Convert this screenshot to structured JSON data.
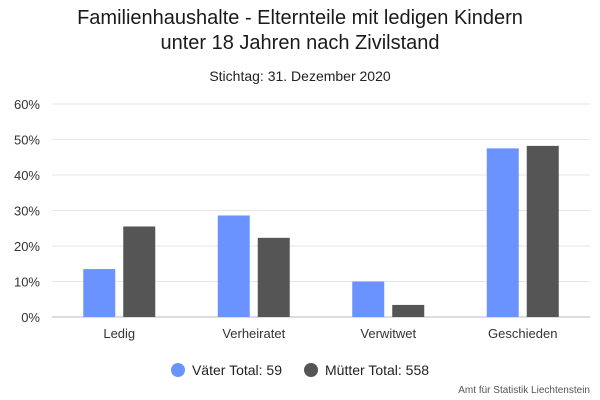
{
  "chart_data": {
    "type": "bar",
    "title_line1": "Familienhaushalte - Elternteile mit ledigen Kindern",
    "title_line2": "unter 18 Jahren nach Zivilstand",
    "subtitle": "Stichtag: 31. Dezember 2020",
    "categories": [
      "Ledig",
      "Verheiratet",
      "Verwitwet",
      "Geschieden"
    ],
    "series": [
      {
        "name": "Väter Total: 59",
        "color": "#6b93ff",
        "values": [
          13.5,
          28.6,
          10.0,
          47.5
        ]
      },
      {
        "name": "Mütter Total: 558",
        "color": "#555555",
        "values": [
          25.5,
          22.3,
          3.4,
          48.2
        ]
      }
    ],
    "y_ticks": [
      "0%",
      "10%",
      "20%",
      "30%",
      "40%",
      "50%",
      "60%"
    ],
    "ylim": [
      0,
      60
    ],
    "xlabel": "",
    "ylabel": "",
    "grid": true,
    "legend_position": "bottom-center",
    "credits": "Amt für Statistik Liechtenstein"
  }
}
